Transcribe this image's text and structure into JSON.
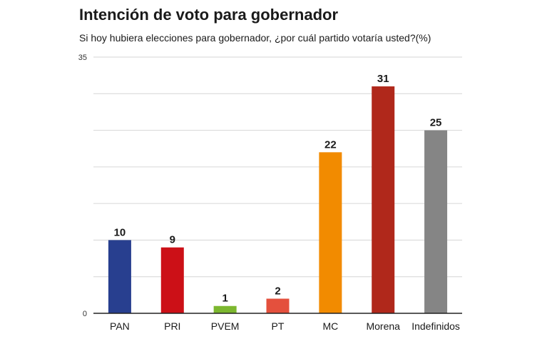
{
  "title": "Intención de voto para gobernador",
  "subtitle": "Si hoy hubiera elecciones para gobernador, ¿por cuál partido votaría usted?(%)",
  "chart_data": {
    "type": "bar",
    "title": "Intención de voto para gobernador",
    "subtitle": "Si hoy hubiera elecciones para gobernador, ¿por cuál partido votaría usted?(%)",
    "categories": [
      "PAN",
      "PRI",
      "PVEM",
      "PT",
      "MC",
      "Morena",
      "Indefinidos"
    ],
    "values": [
      10,
      9,
      1,
      2,
      22,
      31,
      25
    ],
    "colors": [
      "#283f8f",
      "#cc1017",
      "#7cb72f",
      "#e4503d",
      "#f28b00",
      "#b0281b",
      "#858585"
    ],
    "ylim": [
      0,
      35
    ],
    "yticks": [
      0,
      35
    ],
    "xlabel": "",
    "ylabel": "",
    "grid": true,
    "legend": "none"
  }
}
